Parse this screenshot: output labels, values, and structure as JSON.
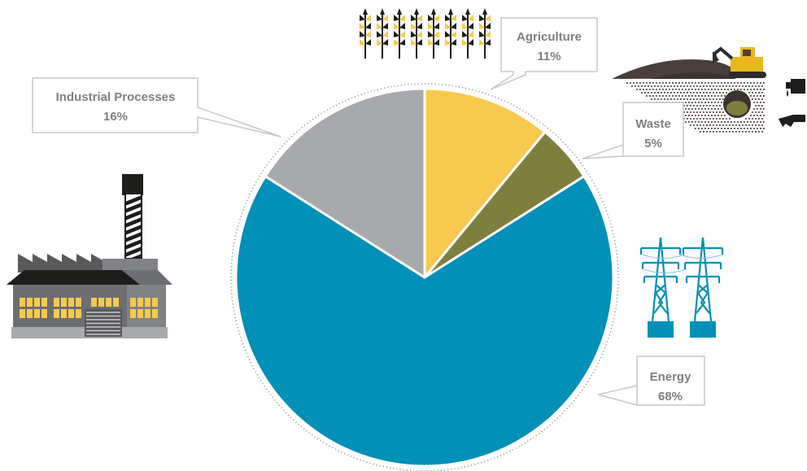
{
  "chart_data": {
    "type": "pie",
    "title": "",
    "start_angle_deg": 0,
    "direction": "clockwise",
    "slices": [
      {
        "label": "Agriculture",
        "value_label": "11%",
        "value": 11,
        "color": "#f7c94e",
        "icon": "wheat-icon"
      },
      {
        "label": "Waste",
        "value_label": "5%",
        "value": 5,
        "color": "#7e7f3c",
        "icon": "excavator-landfill-icon"
      },
      {
        "label": "Energy",
        "value_label": "68%",
        "value": 68,
        "color": "#0090b8",
        "icon": "power-pylon-icon"
      },
      {
        "label": "Industrial Processes",
        "value_label": "16%",
        "value": 16,
        "color": "#a7a9ac",
        "icon": "factory-icon"
      }
    ]
  },
  "colors": {
    "callout_text": "#7f7f7f",
    "callout_border": "#c7c7c7",
    "slice_separator": "#ffffff",
    "outer_ring": "#9a9a9a"
  }
}
